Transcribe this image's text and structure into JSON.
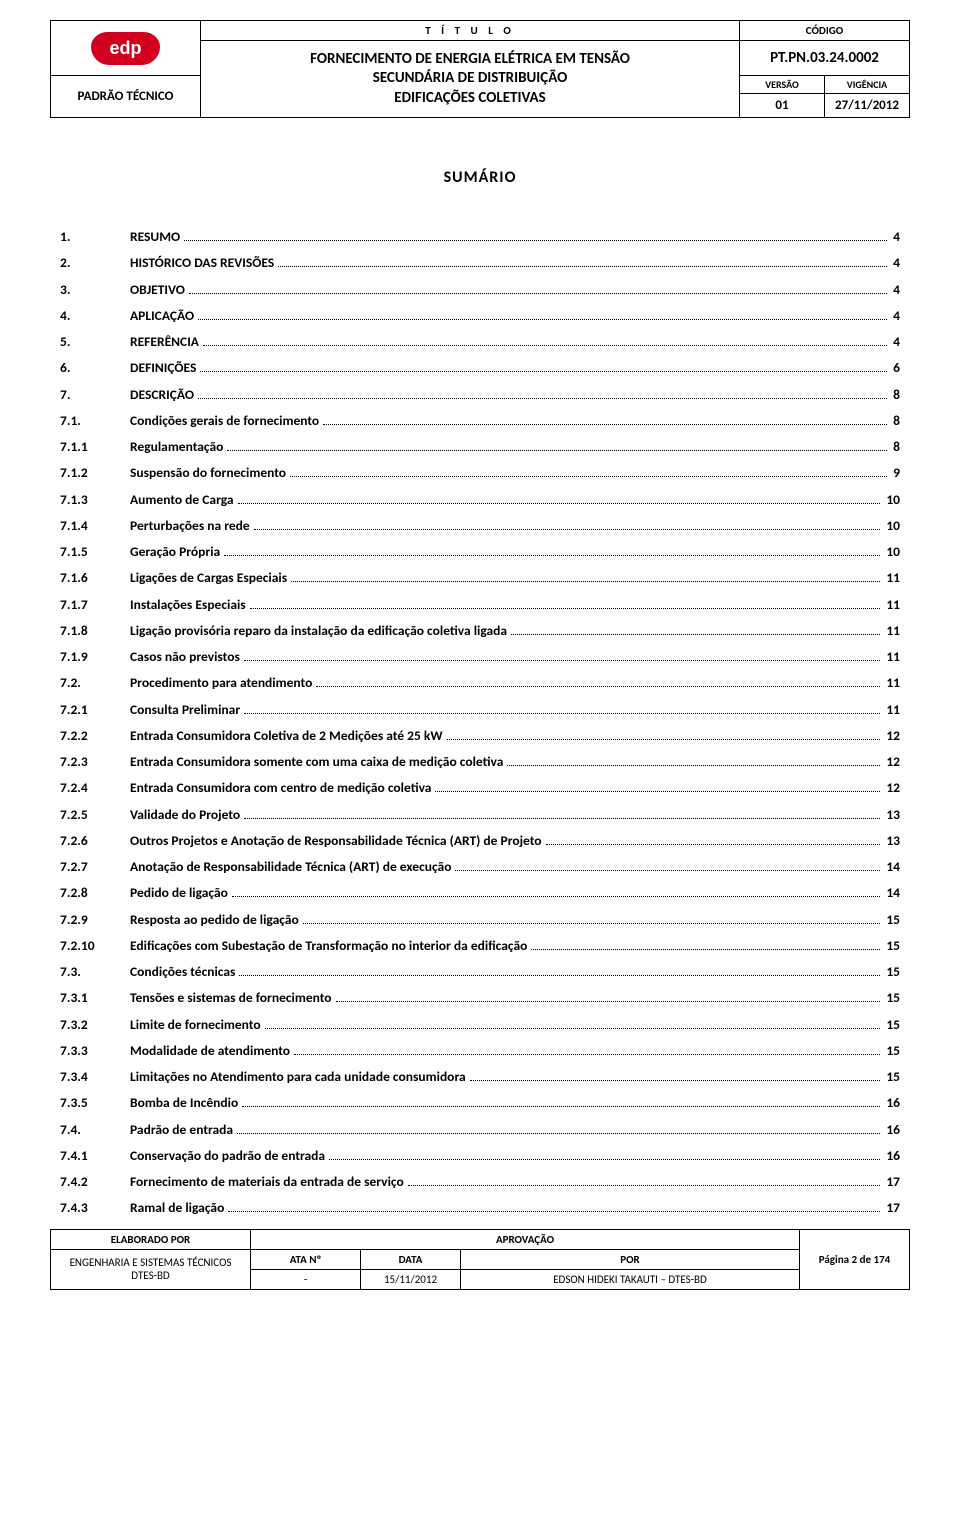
{
  "header": {
    "titulo_label": "T Í T U L O",
    "codigo_label": "CÓDIGO",
    "title_line1": "FORNECIMENTO DE ENERGIA ELÉTRICA EM TENSÃO",
    "title_line2": "SECUNDÁRIA DE DISTRIBUIÇÃO",
    "title_line3": "EDIFICAÇÕES COLETIVAS",
    "code": "PT.PN.03.24.0002",
    "padrao": "PADRÃO TÉCNICO",
    "versao_label": "VERSÃO",
    "vigencia_label": "VIGÊNCIA",
    "versao": "01",
    "vigencia": "27/11/2012",
    "logo_text": "edp"
  },
  "sumario_title": "SUMÁRIO",
  "toc": [
    {
      "n": "1.",
      "t": "RESUMO",
      "p": "4"
    },
    {
      "n": "2.",
      "t": "HISTÓRICO DAS REVISÕES",
      "p": "4"
    },
    {
      "n": "3.",
      "t": "OBJETIVO",
      "p": "4"
    },
    {
      "n": "4.",
      "t": "APLICAÇÃO",
      "p": "4"
    },
    {
      "n": "5.",
      "t": "REFERÊNCIA",
      "p": "4"
    },
    {
      "n": "6.",
      "t": "DEFINIÇÕES",
      "p": "6"
    },
    {
      "n": "7.",
      "t": "DESCRIÇÃO",
      "p": "8"
    },
    {
      "n": "7.1.",
      "t": "Condições gerais de fornecimento",
      "p": "8"
    },
    {
      "n": "7.1.1",
      "t": "Regulamentação",
      "p": "8"
    },
    {
      "n": "7.1.2",
      "t": "Suspensão do fornecimento",
      "p": "9"
    },
    {
      "n": "7.1.3",
      "t": "Aumento de Carga",
      "p": "10"
    },
    {
      "n": "7.1.4",
      "t": "Perturbações na rede",
      "p": "10"
    },
    {
      "n": "7.1.5",
      "t": "Geração Própria",
      "p": "10"
    },
    {
      "n": "7.1.6",
      "t": "Ligações de Cargas Especiais",
      "p": "11"
    },
    {
      "n": "7.1.7",
      "t": "Instalações Especiais",
      "p": "11"
    },
    {
      "n": "7.1.8",
      "t": "Ligação provisória reparo da instalação da edificação coletiva ligada",
      "p": "11"
    },
    {
      "n": "7.1.9",
      "t": "Casos não previstos",
      "p": "11"
    },
    {
      "n": "7.2.",
      "t": "Procedimento para atendimento",
      "p": "11"
    },
    {
      "n": "7.2.1",
      "t": "Consulta Preliminar",
      "p": "11"
    },
    {
      "n": "7.2.2",
      "t": "Entrada Consumidora Coletiva de 2 Medições até 25 kW",
      "p": "12"
    },
    {
      "n": "7.2.3",
      "t": "Entrada Consumidora somente com uma caixa de medição coletiva",
      "p": "12"
    },
    {
      "n": "7.2.4",
      "t": "Entrada Consumidora com centro de medição coletiva",
      "p": "12"
    },
    {
      "n": "7.2.5",
      "t": "Validade do Projeto",
      "p": "13"
    },
    {
      "n": "7.2.6",
      "t": "Outros Projetos e Anotação de Responsabilidade Técnica (ART) de Projeto",
      "p": "13"
    },
    {
      "n": "7.2.7",
      "t": "Anotação de Responsabilidade Técnica (ART) de execução",
      "p": "14"
    },
    {
      "n": "7.2.8",
      "t": "Pedido de ligação",
      "p": "14"
    },
    {
      "n": "7.2.9",
      "t": "Resposta ao pedido de ligação",
      "p": "15"
    },
    {
      "n": "7.2.10",
      "t": "Edificações com Subestação de Transformação no interior da edificação",
      "p": "15"
    },
    {
      "n": "7.3.",
      "t": "Condições técnicas",
      "p": "15"
    },
    {
      "n": "7.3.1",
      "t": "Tensões e sistemas de fornecimento",
      "p": "15"
    },
    {
      "n": "7.3.2",
      "t": "Limite de fornecimento",
      "p": "15"
    },
    {
      "n": "7.3.3",
      "t": "Modalidade de atendimento",
      "p": "15"
    },
    {
      "n": "7.3.4",
      "t": "Limitações no Atendimento para cada unidade consumidora",
      "p": "15"
    },
    {
      "n": "7.3.5",
      "t": "Bomba de Incêndio",
      "p": "16"
    },
    {
      "n": "7.4.",
      "t": "Padrão de entrada",
      "p": "16"
    },
    {
      "n": "7.4.1",
      "t": "Conservação do padrão de entrada",
      "p": "16"
    },
    {
      "n": "7.4.2",
      "t": "Fornecimento de materiais da entrada de serviço",
      "p": "17"
    },
    {
      "n": "7.4.3",
      "t": "Ramal de ligação",
      "p": "17"
    }
  ],
  "footer": {
    "elab_label": "ELABORADO POR",
    "aprov_label": "APROVAÇÃO",
    "elab_line1": "ENGENHARIA E SISTEMAS TÉCNICOS",
    "elab_line2": "DTES-BD",
    "ata_label": "ATA Nº",
    "data_label": "DATA",
    "por_label": "POR",
    "ata_val": "-",
    "data_val": "15/11/2012",
    "por_val": "EDSON HIDEKI TAKAUTI – DTES-BD",
    "page_info": "Página 2 de 174"
  }
}
